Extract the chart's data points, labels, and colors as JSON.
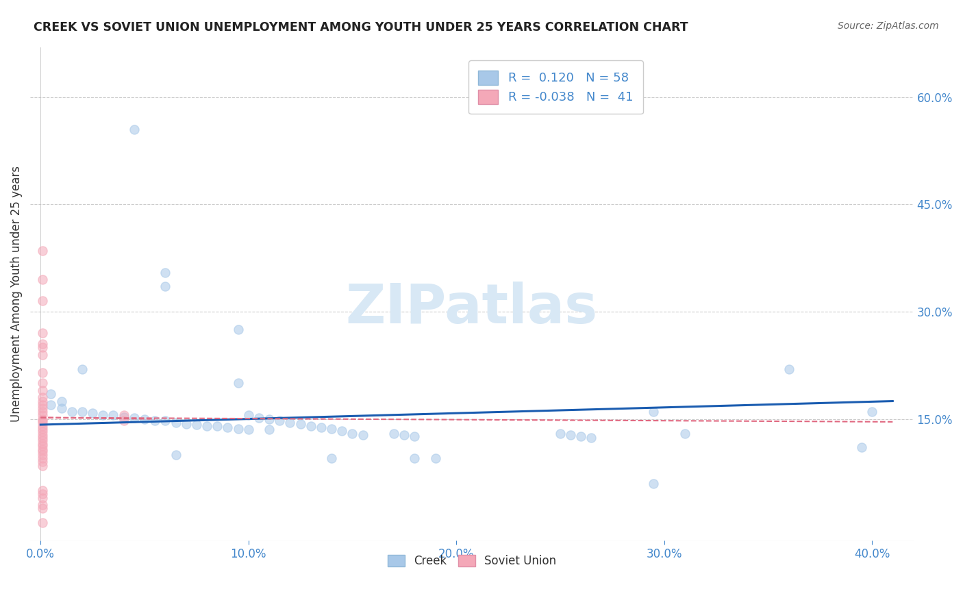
{
  "title": "CREEK VS SOVIET UNION UNEMPLOYMENT AMONG YOUTH UNDER 25 YEARS CORRELATION CHART",
  "source": "Source: ZipAtlas.com",
  "ylabel": "Unemployment Among Youth under 25 years",
  "xlim": [
    -0.005,
    0.42
  ],
  "ylim": [
    -0.02,
    0.67
  ],
  "xticks": [
    0.0,
    0.1,
    0.2,
    0.3,
    0.4
  ],
  "xticklabels": [
    "0.0%",
    "10.0%",
    "20.0%",
    "30.0%",
    "40.0%"
  ],
  "ytick_positions": [
    0.15,
    0.3,
    0.45,
    0.6
  ],
  "ytick_labels_right": [
    "15.0%",
    "30.0%",
    "45.0%",
    "60.0%"
  ],
  "legend_r_creek": "0.120",
  "legend_n_creek": "58",
  "legend_r_soviet": "-0.038",
  "legend_n_soviet": "41",
  "creek_color": "#a8c8e8",
  "soviet_color": "#f4a8b8",
  "creek_line_color": "#1a5cb0",
  "soviet_line_color": "#e06880",
  "creek_scatter": [
    [
      0.045,
      0.555
    ],
    [
      0.06,
      0.355
    ],
    [
      0.095,
      0.275
    ],
    [
      0.06,
      0.335
    ],
    [
      0.095,
      0.2
    ],
    [
      0.02,
      0.22
    ],
    [
      0.005,
      0.185
    ],
    [
      0.01,
      0.175
    ],
    [
      0.005,
      0.17
    ],
    [
      0.01,
      0.165
    ],
    [
      0.015,
      0.16
    ],
    [
      0.02,
      0.16
    ],
    [
      0.025,
      0.158
    ],
    [
      0.03,
      0.155
    ],
    [
      0.035,
      0.155
    ],
    [
      0.04,
      0.153
    ],
    [
      0.045,
      0.152
    ],
    [
      0.05,
      0.15
    ],
    [
      0.055,
      0.148
    ],
    [
      0.06,
      0.148
    ],
    [
      0.065,
      0.145
    ],
    [
      0.07,
      0.143
    ],
    [
      0.075,
      0.142
    ],
    [
      0.08,
      0.14
    ],
    [
      0.085,
      0.14
    ],
    [
      0.09,
      0.138
    ],
    [
      0.095,
      0.136
    ],
    [
      0.1,
      0.135
    ],
    [
      0.1,
      0.155
    ],
    [
      0.105,
      0.152
    ],
    [
      0.11,
      0.15
    ],
    [
      0.11,
      0.135
    ],
    [
      0.115,
      0.148
    ],
    [
      0.12,
      0.145
    ],
    [
      0.125,
      0.143
    ],
    [
      0.13,
      0.14
    ],
    [
      0.135,
      0.138
    ],
    [
      0.14,
      0.136
    ],
    [
      0.145,
      0.133
    ],
    [
      0.15,
      0.13
    ],
    [
      0.155,
      0.128
    ],
    [
      0.065,
      0.1
    ],
    [
      0.14,
      0.095
    ],
    [
      0.17,
      0.13
    ],
    [
      0.175,
      0.128
    ],
    [
      0.18,
      0.126
    ],
    [
      0.18,
      0.095
    ],
    [
      0.19,
      0.095
    ],
    [
      0.25,
      0.13
    ],
    [
      0.255,
      0.128
    ],
    [
      0.26,
      0.126
    ],
    [
      0.265,
      0.124
    ],
    [
      0.295,
      0.16
    ],
    [
      0.31,
      0.13
    ],
    [
      0.36,
      0.22
    ],
    [
      0.4,
      0.16
    ],
    [
      0.295,
      0.06
    ],
    [
      0.395,
      0.11
    ]
  ],
  "soviet_scatter": [
    [
      0.001,
      0.385
    ],
    [
      0.001,
      0.345
    ],
    [
      0.001,
      0.315
    ],
    [
      0.001,
      0.27
    ],
    [
      0.001,
      0.255
    ],
    [
      0.001,
      0.25
    ],
    [
      0.001,
      0.24
    ],
    [
      0.001,
      0.215
    ],
    [
      0.001,
      0.2
    ],
    [
      0.001,
      0.19
    ],
    [
      0.001,
      0.18
    ],
    [
      0.001,
      0.175
    ],
    [
      0.001,
      0.17
    ],
    [
      0.001,
      0.165
    ],
    [
      0.001,
      0.16
    ],
    [
      0.001,
      0.155
    ],
    [
      0.001,
      0.15
    ],
    [
      0.001,
      0.148
    ],
    [
      0.001,
      0.145
    ],
    [
      0.001,
      0.14
    ],
    [
      0.001,
      0.136
    ],
    [
      0.001,
      0.132
    ],
    [
      0.001,
      0.128
    ],
    [
      0.001,
      0.124
    ],
    [
      0.001,
      0.12
    ],
    [
      0.001,
      0.115
    ],
    [
      0.001,
      0.112
    ],
    [
      0.001,
      0.108
    ],
    [
      0.001,
      0.105
    ],
    [
      0.001,
      0.1
    ],
    [
      0.001,
      0.095
    ],
    [
      0.001,
      0.09
    ],
    [
      0.001,
      0.085
    ],
    [
      0.04,
      0.155
    ],
    [
      0.04,
      0.148
    ],
    [
      0.001,
      0.05
    ],
    [
      0.001,
      0.045
    ],
    [
      0.001,
      0.04
    ],
    [
      0.001,
      0.03
    ],
    [
      0.001,
      0.025
    ],
    [
      0.001,
      0.005
    ]
  ],
  "creek_trendline": [
    [
      0.0,
      0.148
    ],
    [
      0.41,
      0.178
    ]
  ],
  "soviet_trendline": [
    [
      0.0,
      0.152
    ],
    [
      0.055,
      0.15
    ]
  ],
  "watermark": "ZIPatlas",
  "watermark_color": "#d8e8f5",
  "background_color": "#ffffff",
  "grid_color": "#cccccc",
  "tick_color": "#4488cc",
  "title_color": "#222222",
  "source_color": "#666666",
  "ylabel_color": "#333333"
}
